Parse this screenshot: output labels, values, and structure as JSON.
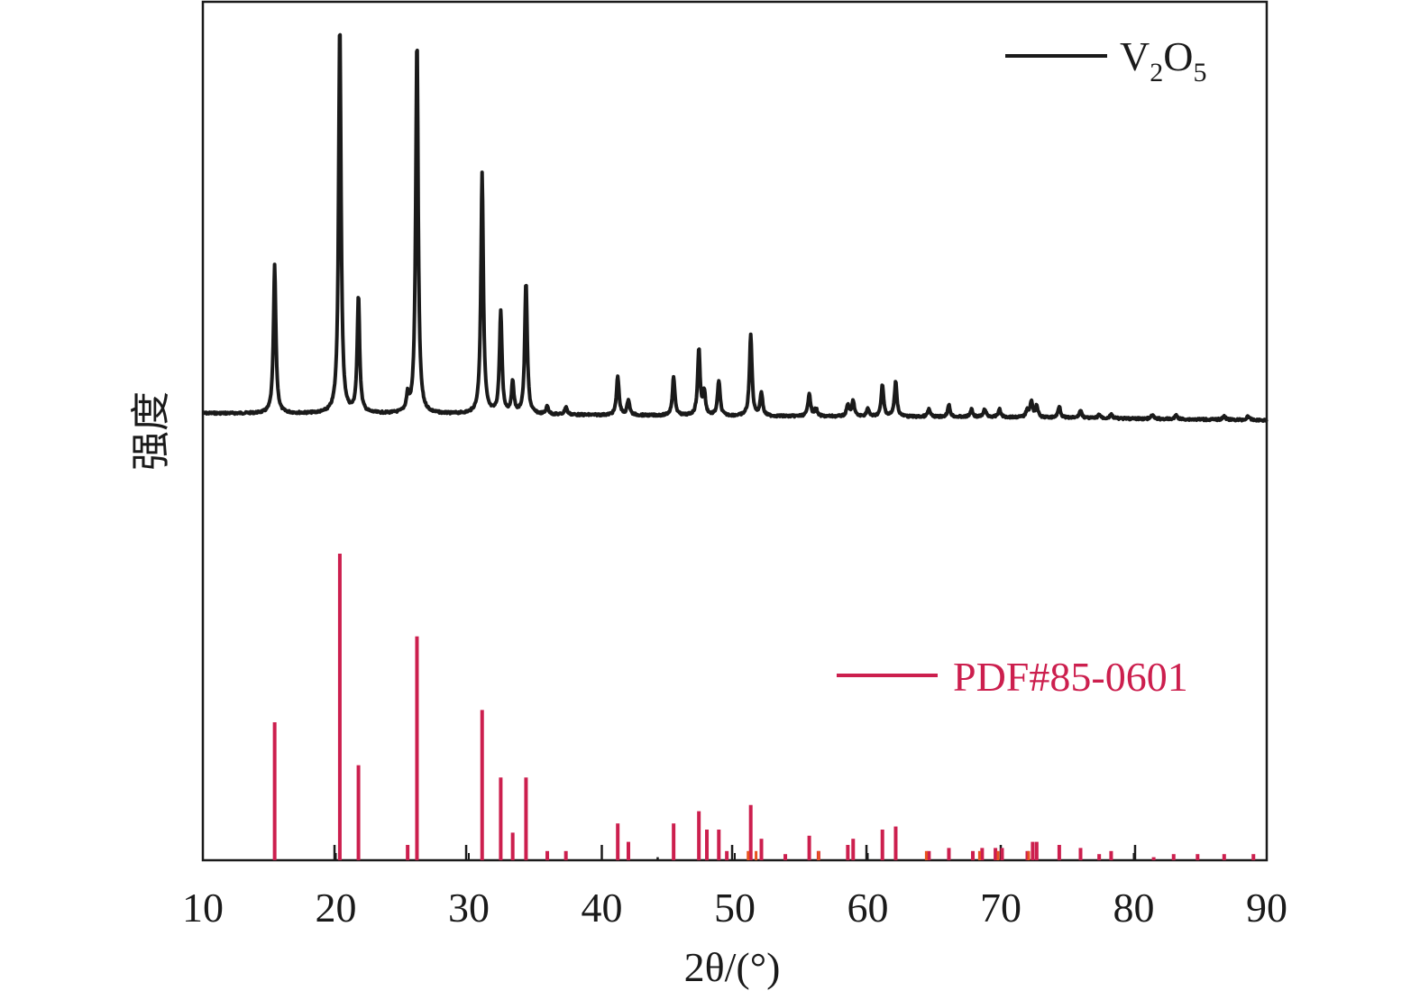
{
  "chart_data": {
    "type": "line",
    "xlabel": "2θ/(°)",
    "ylabel": "强度",
    "xlim": [
      10,
      90
    ],
    "xticks": [
      10,
      20,
      30,
      40,
      50,
      60,
      70,
      80,
      90
    ],
    "grid": false,
    "colors": {
      "pattern": "#1a1a1a",
      "reference": "#cc1f4e",
      "reference_minor": "#e8531f"
    },
    "legend": [
      {
        "name": "V",
        "sub1": "2",
        "mid": "O",
        "sub2": "5",
        "color": "#1a1a1a",
        "placement": "top-right"
      },
      {
        "name": "PDF#85-0601",
        "color": "#cc1f4e",
        "placement": "middle-right"
      }
    ],
    "series": [
      {
        "name": "V2O5",
        "style": "line",
        "baseline": [
          [
            10,
            0.07
          ],
          [
            30,
            0.06
          ],
          [
            50,
            0.04
          ],
          [
            70,
            0.03
          ],
          [
            90,
            0.0
          ]
        ],
        "peaks": [
          [
            15.4,
            0.38
          ],
          [
            20.3,
            1.0
          ],
          [
            21.7,
            0.3
          ],
          [
            25.4,
            0.04
          ],
          [
            26.1,
            0.96
          ],
          [
            31.0,
            0.62
          ],
          [
            32.4,
            0.26
          ],
          [
            33.3,
            0.08
          ],
          [
            34.3,
            0.34
          ],
          [
            35.9,
            0.02
          ],
          [
            37.3,
            0.02
          ],
          [
            41.2,
            0.1
          ],
          [
            42.0,
            0.04
          ],
          [
            45.4,
            0.1
          ],
          [
            47.3,
            0.17
          ],
          [
            47.7,
            0.06
          ],
          [
            48.8,
            0.09
          ],
          [
            51.2,
            0.21
          ],
          [
            52.0,
            0.06
          ],
          [
            55.6,
            0.06
          ],
          [
            56.1,
            0.02
          ],
          [
            58.5,
            0.03
          ],
          [
            58.9,
            0.04
          ],
          [
            60.0,
            0.02
          ],
          [
            61.1,
            0.08
          ],
          [
            62.1,
            0.09
          ],
          [
            64.6,
            0.02
          ],
          [
            66.1,
            0.03
          ],
          [
            67.8,
            0.02
          ],
          [
            68.8,
            0.02
          ],
          [
            69.9,
            0.02
          ],
          [
            72.0,
            0.02
          ],
          [
            72.3,
            0.04
          ],
          [
            72.7,
            0.03
          ],
          [
            74.4,
            0.03
          ],
          [
            76.0,
            0.02
          ],
          [
            77.4,
            0.01
          ],
          [
            78.3,
            0.01
          ],
          [
            81.4,
            0.01
          ],
          [
            83.2,
            0.01
          ],
          [
            86.8,
            0.01
          ],
          [
            88.6,
            0.01
          ]
        ]
      },
      {
        "name": "PDF#85-0601",
        "style": "sticks",
        "values": [
          [
            15.4,
            0.45
          ],
          [
            20.3,
            1.0
          ],
          [
            21.7,
            0.31
          ],
          [
            25.4,
            0.05
          ],
          [
            26.1,
            0.73
          ],
          [
            31.0,
            0.49
          ],
          [
            32.4,
            0.27
          ],
          [
            33.3,
            0.09
          ],
          [
            34.3,
            0.27
          ],
          [
            35.9,
            0.03
          ],
          [
            37.3,
            0.03
          ],
          [
            41.2,
            0.12
          ],
          [
            42.0,
            0.06
          ],
          [
            45.4,
            0.12
          ],
          [
            47.3,
            0.16
          ],
          [
            47.9,
            0.1
          ],
          [
            48.8,
            0.1
          ],
          [
            49.4,
            0.03
          ],
          [
            51.2,
            0.18
          ],
          [
            52.0,
            0.07
          ],
          [
            53.8,
            0.02
          ],
          [
            55.6,
            0.08
          ],
          [
            56.3,
            0.03
          ],
          [
            58.5,
            0.05
          ],
          [
            58.9,
            0.07
          ],
          [
            61.1,
            0.1
          ],
          [
            62.1,
            0.11
          ],
          [
            64.6,
            0.03
          ],
          [
            66.1,
            0.04
          ],
          [
            67.9,
            0.03
          ],
          [
            68.6,
            0.04
          ],
          [
            69.6,
            0.04
          ],
          [
            70.1,
            0.04
          ],
          [
            72.0,
            0.03
          ],
          [
            72.4,
            0.06
          ],
          [
            72.7,
            0.06
          ],
          [
            74.4,
            0.05
          ],
          [
            76.0,
            0.04
          ],
          [
            77.4,
            0.02
          ],
          [
            78.3,
            0.03
          ],
          [
            81.5,
            0.01
          ],
          [
            83.0,
            0.02
          ],
          [
            84.8,
            0.02
          ],
          [
            86.8,
            0.02
          ],
          [
            89.0,
            0.02
          ]
        ],
        "minor_values": [
          [
            19.9,
            0.05
          ],
          [
            29.8,
            0.05
          ],
          [
            40.0,
            0.05
          ],
          [
            44.2,
            0.01
          ],
          [
            49.8,
            0.05
          ],
          [
            59.9,
            0.05
          ],
          [
            70.0,
            0.05
          ],
          [
            80.1,
            0.05
          ]
        ]
      }
    ]
  }
}
